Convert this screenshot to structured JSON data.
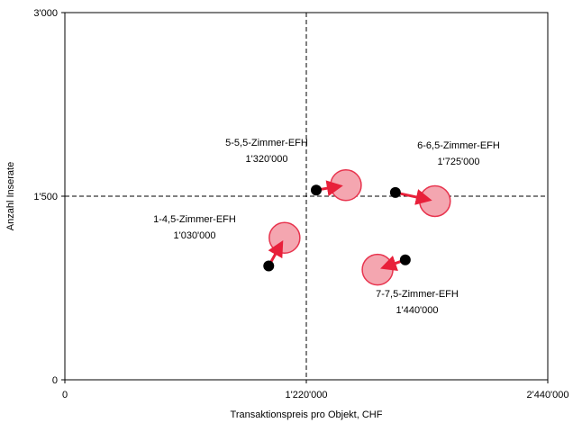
{
  "chart_data": {
    "type": "scatter",
    "title": "",
    "xlabel": "Transaktionspreis pro Objekt, CHF",
    "ylabel": "Anzahl Inserate",
    "xlim": [
      0,
      2440000
    ],
    "ylim": [
      0,
      3000
    ],
    "xticks": [
      {
        "value": 0,
        "label": "0"
      },
      {
        "value": 1220000,
        "label": "1'220'000"
      },
      {
        "value": 2440000,
        "label": "2'440'000"
      }
    ],
    "yticks": [
      {
        "value": 0,
        "label": "0"
      },
      {
        "value": 1500,
        "label": "1'500"
      },
      {
        "value": 3000,
        "label": "3'000"
      }
    ],
    "reference_lines": {
      "x": 1220000,
      "y": 1500
    },
    "grid": false,
    "colors": {
      "start_point": "#000000",
      "end_circle_fill": "#f4a6b0",
      "end_circle_stroke": "#e8344e",
      "arrow": "#e8203a"
    },
    "series": [
      {
        "name": "1-4,5-Zimmer-EFH",
        "price_label": "1'030'000",
        "start": [
          1030000,
          930
        ],
        "end": [
          1110000,
          1160
        ]
      },
      {
        "name": "5-5,5-Zimmer-EFH",
        "price_label": "1'320'000",
        "start": [
          1270000,
          1550
        ],
        "end": [
          1420000,
          1590
        ]
      },
      {
        "name": "6-6,5-Zimmer-EFH",
        "price_label": "1'725'000",
        "start": [
          1670000,
          1530
        ],
        "end": [
          1870000,
          1460
        ]
      },
      {
        "name": "7-7,5-Zimmer-EFH",
        "price_label": "1'440'000",
        "start": [
          1720000,
          980
        ],
        "end": [
          1580000,
          900
        ]
      }
    ]
  }
}
